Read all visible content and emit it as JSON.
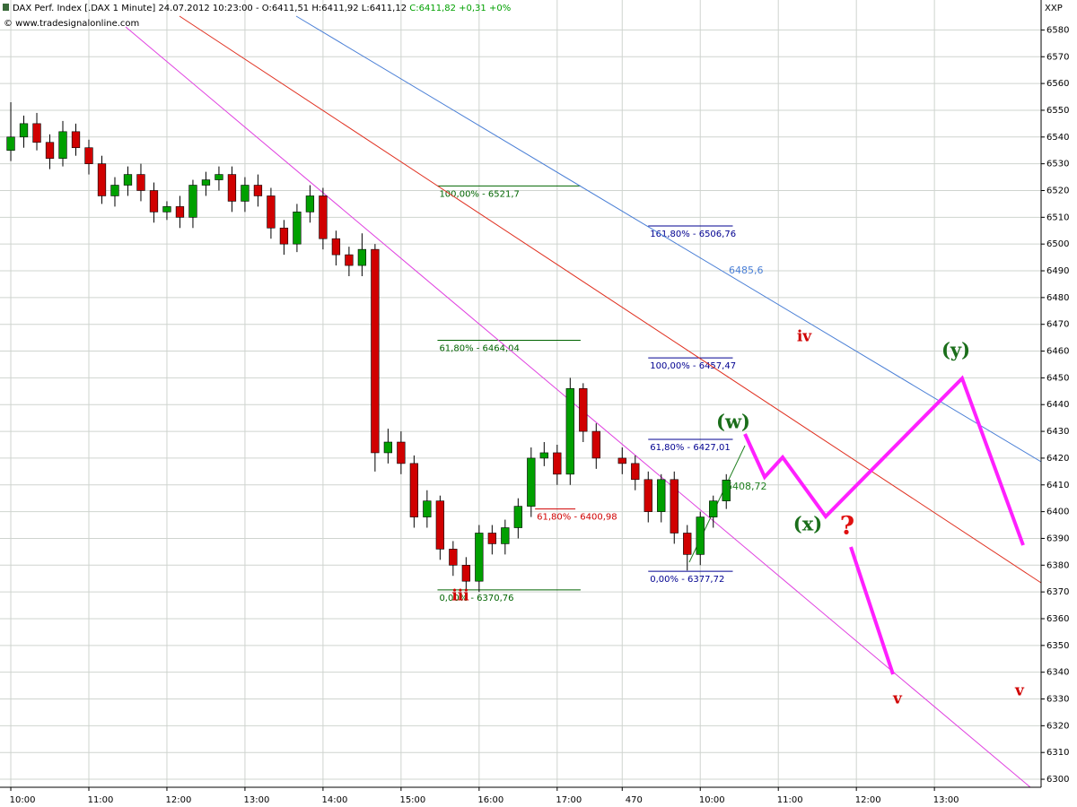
{
  "header": {
    "title": "DAX Perf. Index [.DAX  1 Minute] 24.07.2012 10:23:00 - O:6411,51 H:6411,92 L:6411,12",
    "change": "C:6411,82 +0,31 +0%",
    "source": "© www.tradesignalonline.com",
    "symbol": "XXP"
  },
  "chart_data": {
    "type": "candlestick",
    "x": [
      0,
      10,
      20,
      30,
      40,
      50,
      60,
      70,
      80,
      90,
      100,
      110,
      120,
      130,
      140,
      150,
      160,
      170,
      180,
      190,
      200,
      210,
      220,
      230,
      240,
      250,
      260,
      270,
      280,
      290,
      300,
      310,
      320,
      330,
      340,
      350,
      360,
      370,
      380,
      390,
      400,
      410,
      420,
      430,
      440,
      450,
      470,
      480,
      490,
      500,
      510,
      520,
      530,
      540,
      550
    ],
    "open": [
      6535,
      6540,
      6545,
      6538,
      6532,
      6542,
      6536,
      6530,
      6518,
      6522,
      6526,
      6520,
      6512,
      6514,
      6510,
      6522,
      6524,
      6526,
      6516,
      6522,
      6518,
      6506,
      6500,
      6512,
      6518,
      6502,
      6496,
      6492,
      6498,
      6422,
      6426,
      6418,
      6398,
      6404,
      6386,
      6380,
      6374,
      6392,
      6388,
      6394,
      6402,
      6420,
      6422,
      6414,
      6446,
      6430,
      6420,
      6418,
      6412,
      6400,
      6412,
      6392,
      6384,
      6398,
      6404
    ],
    "high": [
      6553,
      6548,
      6549,
      6541,
      6546,
      6545,
      6539,
      6533,
      6525,
      6529,
      6530,
      6523,
      6516,
      6518,
      6524,
      6527,
      6529,
      6529,
      6525,
      6526,
      6521,
      6509,
      6515,
      6522,
      6521,
      6505,
      6499,
      6504,
      6500,
      6431,
      6430,
      6421,
      6408,
      6406,
      6389,
      6383,
      6395,
      6395,
      6397,
      6405,
      6424,
      6426,
      6425,
      6450,
      6448,
      6433,
      6424,
      6421,
      6415,
      6414,
      6415,
      6395,
      6400,
      6406,
      6414
    ],
    "low": [
      6531,
      6536,
      6535,
      6528,
      6529,
      6533,
      6526,
      6515,
      6514,
      6518,
      6516,
      6508,
      6509,
      6506,
      6506,
      6518,
      6520,
      6512,
      6512,
      6514,
      6502,
      6496,
      6497,
      6508,
      6498,
      6492,
      6488,
      6488,
      6415,
      6418,
      6414,
      6394,
      6394,
      6382,
      6376,
      6371,
      6370,
      6384,
      6384,
      6390,
      6398,
      6417,
      6410,
      6410,
      6426,
      6416,
      6414,
      6408,
      6396,
      6396,
      6388,
      6378,
      6380,
      6394,
      6401
    ],
    "close": [
      6540,
      6545,
      6538,
      6532,
      6542,
      6536,
      6530,
      6518,
      6522,
      6526,
      6520,
      6512,
      6514,
      6510,
      6522,
      6524,
      6526,
      6516,
      6522,
      6518,
      6506,
      6500,
      6512,
      6518,
      6502,
      6496,
      6492,
      6498,
      6422,
      6426,
      6418,
      6398,
      6404,
      6386,
      6380,
      6374,
      6392,
      6388,
      6394,
      6402,
      6420,
      6422,
      6414,
      6446,
      6430,
      6420,
      6418,
      6412,
      6400,
      6412,
      6392,
      6384,
      6398,
      6404,
      6411.82
    ],
    "up_color": "#00a000",
    "down_color": "#d00000",
    "xlim": [
      -8.3,
      792
    ],
    "ylim": [
      6297,
      6591.2
    ],
    "xticks": [
      {
        "value": 0,
        "label": "10:00"
      },
      {
        "value": 60,
        "label": "11:00"
      },
      {
        "value": 120,
        "label": "12:00"
      },
      {
        "value": 180,
        "label": "13:00"
      },
      {
        "value": 240,
        "label": "14:00"
      },
      {
        "value": 300,
        "label": "15:00"
      },
      {
        "value": 360,
        "label": "16:00"
      },
      {
        "value": 420,
        "label": "17:00"
      },
      470,
      {
        "value": 530,
        "label": "10:00"
      },
      {
        "value": 590,
        "label": "11:00"
      },
      {
        "value": 650,
        "label": "12:00"
      },
      {
        "value": 710,
        "label": "13:00"
      }
    ],
    "yticks": [
      6300,
      6310,
      6320,
      6330,
      6340,
      6350,
      6360,
      6370,
      6380,
      6390,
      6400,
      6410,
      6420,
      6430,
      6440,
      6450,
      6460,
      6470,
      6480,
      6490,
      6500,
      6510,
      6520,
      6530,
      6540,
      6550,
      6560,
      6570,
      6580
    ],
    "grid": true,
    "fib_levels": [
      {
        "label": "100,00% - 6521,7",
        "value": 6521.7,
        "x": [
          328,
          438
        ],
        "color": "#006400"
      },
      {
        "label": "61,80% - 6464,04",
        "value": 6464.04,
        "x": [
          328,
          438
        ],
        "color": "#006400"
      },
      {
        "label": "0,00% - 6370,76",
        "value": 6370.76,
        "x": [
          328,
          438
        ],
        "color": "#006400"
      },
      {
        "label": "61,80% - 6400,98",
        "value": 6400.98,
        "x": [
          403,
          434
        ],
        "color": "#d00000"
      },
      {
        "label": "161,80% - 6506,76",
        "value": 6506.76,
        "x": [
          490,
          555
        ],
        "color": "#000090"
      },
      {
        "label": "100,00% - 6457,47",
        "value": 6457.47,
        "x": [
          490,
          555
        ],
        "color": "#000090"
      },
      {
        "label": "61,80% - 6427,01",
        "value": 6427.01,
        "x": [
          490,
          555
        ],
        "color": "#000090"
      },
      {
        "label": "0,00% - 6377,72",
        "value": 6377.72,
        "x": [
          490,
          555
        ],
        "color": "#000090"
      }
    ],
    "line_labels": [
      "6485,6",
      "6408,72"
    ],
    "wave_labels": [
      "iii",
      "iv",
      "v",
      "v",
      "(w)",
      "(x)",
      "(y)",
      "?"
    ]
  }
}
